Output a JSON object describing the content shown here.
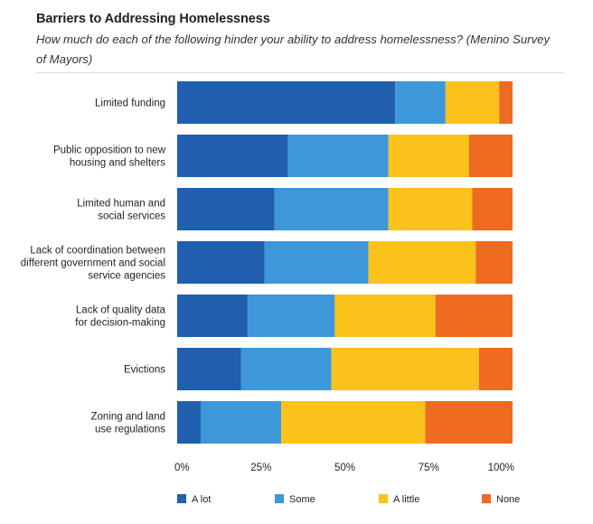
{
  "chart_data": {
    "type": "bar",
    "orientation": "horizontal",
    "stacked": true,
    "title": "Barriers to Addressing Homelessness",
    "subtitle": "How much do each of the following hinder your ability to address homelessness? (Menino Survey of Mayors)",
    "categories": [
      [
        "Limited funding"
      ],
      [
        "Public opposition to new",
        "housing and shelters"
      ],
      [
        "Limited human and",
        "social services"
      ],
      [
        "Lack of coordination between",
        "different government and social",
        "service agencies"
      ],
      [
        "Lack of quality data",
        "for decision-making"
      ],
      [
        "Evictions"
      ],
      [
        "Zoning and land",
        "use regulations"
      ]
    ],
    "series": [
      {
        "name": "A lot",
        "color": "#1f5fad",
        "values": [
          65,
          33,
          29,
          26,
          21,
          19,
          7
        ]
      },
      {
        "name": "Some",
        "color": "#3e97d8",
        "values": [
          15,
          30,
          34,
          31,
          26,
          27,
          24
        ]
      },
      {
        "name": "A little",
        "color": "#fbc21c",
        "values": [
          16,
          24,
          25,
          32,
          30,
          44,
          43
        ]
      },
      {
        "name": "None",
        "color": "#ef6b21",
        "values": [
          4,
          13,
          12,
          11,
          23,
          10,
          26
        ]
      }
    ],
    "xlim": [
      0,
      100
    ],
    "xticks": [
      "0%",
      "25%",
      "50%",
      "75%",
      "100%"
    ],
    "xlabel": "",
    "ylabel": "",
    "legend_position": "bottom"
  }
}
